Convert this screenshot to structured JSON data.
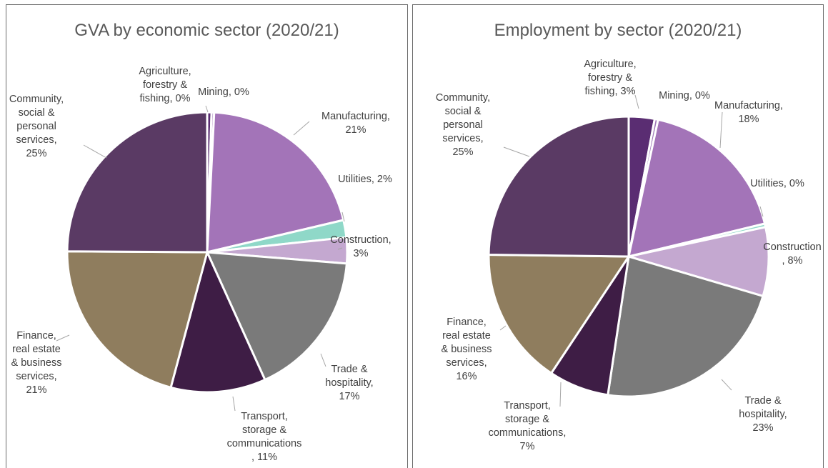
{
  "chart_data": [
    {
      "type": "pie",
      "title": "GVA by economic sector (2020/21)",
      "slices": [
        {
          "name": "Agriculture, forestry & fishing",
          "value": 0.5,
          "label": [
            "Agriculture,",
            "forestry &",
            "fishing, 0%"
          ],
          "color": "#5a2d72"
        },
        {
          "name": "Mining",
          "value": 0.3,
          "label": [
            "Mining, 0%"
          ],
          "color": "#a07ab8"
        },
        {
          "name": "Manufacturing",
          "value": 20.6,
          "label": [
            "Manufacturing,",
            "21%"
          ],
          "color": "#a374b8"
        },
        {
          "name": "Utilities",
          "value": 2,
          "label": [
            "Utilities, 2%"
          ],
          "color": "#8fd8c8"
        },
        {
          "name": "Construction",
          "value": 3,
          "label": [
            "Construction,",
            "3%"
          ],
          "color": "#c4a8d0"
        },
        {
          "name": "Trade & hospitality",
          "value": 17,
          "label": [
            "Trade &",
            "hospitality,",
            "17%"
          ],
          "color": "#7a7a7a"
        },
        {
          "name": "Transport, storage & communications",
          "value": 11,
          "label": [
            "Transport,",
            "storage &",
            "communications",
            ", 11%"
          ],
          "color": "#3e1d45"
        },
        {
          "name": "Finance, real estate & business services",
          "value": 21,
          "label": [
            "Finance,",
            "real estate",
            "& business",
            "services,",
            "21%"
          ],
          "color": "#8f7d5e"
        },
        {
          "name": "Community, social & personal services",
          "value": 25,
          "label": [
            "Community,",
            "social &",
            "personal",
            "services,",
            "25%"
          ],
          "color": "#5a3a64"
        }
      ]
    },
    {
      "type": "pie",
      "title": "Employment by sector (2020/21)",
      "slices": [
        {
          "name": "Agriculture, forestry & fishing",
          "value": 3,
          "label": [
            "Agriculture,",
            "forestry &",
            "fishing, 3%"
          ],
          "color": "#5a2d72"
        },
        {
          "name": "Mining",
          "value": 0.4,
          "label": [
            "Mining, 0%"
          ],
          "color": "#a07ab8"
        },
        {
          "name": "Manufacturing",
          "value": 18,
          "label": [
            "Manufacturing,",
            "18%"
          ],
          "color": "#a374b8"
        },
        {
          "name": "Utilities",
          "value": 0.4,
          "label": [
            "Utilities, 0%"
          ],
          "color": "#8fd8c8"
        },
        {
          "name": "Construction",
          "value": 8,
          "label": [
            "Construction",
            ", 8%"
          ],
          "color": "#c4a8d0"
        },
        {
          "name": "Trade & hospitality",
          "value": 23,
          "label": [
            "Trade &",
            "hospitality,",
            "23%"
          ],
          "color": "#7a7a7a"
        },
        {
          "name": "Transport, storage & communications",
          "value": 7,
          "label": [
            "Transport,",
            "storage &",
            "communications,",
            "7%"
          ],
          "color": "#3e1d45"
        },
        {
          "name": "Finance, real estate & business services",
          "value": 16,
          "label": [
            "Finance,",
            "real estate",
            "& business",
            "services,",
            "16%"
          ],
          "color": "#8f7d5e"
        },
        {
          "name": "Community, social & personal services",
          "value": 25,
          "label": [
            "Community,",
            "social &",
            "personal",
            "services,",
            "25%"
          ],
          "color": "#5a3a64"
        }
      ]
    }
  ]
}
